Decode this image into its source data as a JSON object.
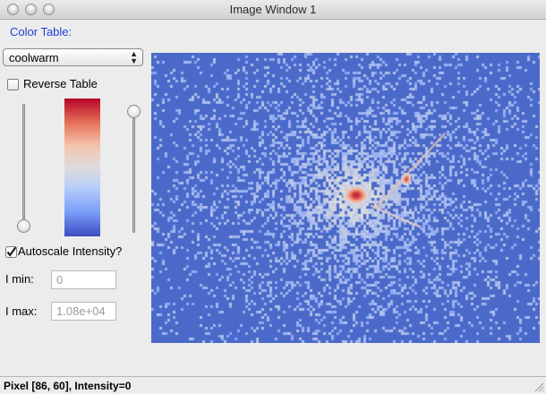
{
  "window": {
    "title": "Image Window 1"
  },
  "colors": {
    "label_blue": "#1f3fd6",
    "image_background": "#4a69c9",
    "colormap_low": "#3b4cc0",
    "colormap_mid": "#dddddd",
    "colormap_high": "#b40426"
  },
  "controls": {
    "color_table_label": "Color Table:",
    "colormap_selected": "coolwarm",
    "select_icon": "up-down-arrows-icon",
    "reverse_table_label": "Reverse Table",
    "reverse_table_checked": false,
    "left_slider_value": 0.0,
    "right_slider_value": 1.0,
    "autoscale_label": "Autoscale Intensity?",
    "autoscale_checked": true,
    "imin_label": "I min:",
    "imin_value": "0",
    "imax_label": "I max:",
    "imax_value": "1.08e+04"
  },
  "status": {
    "text": "Pixel [86, 60], Intensity=0"
  }
}
